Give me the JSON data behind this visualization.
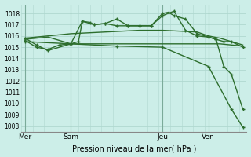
{
  "bg_color": "#cceee8",
  "grid_color": "#b0d8d0",
  "line_color": "#2d6e2d",
  "ylabel_ticks": [
    1008,
    1009,
    1010,
    1011,
    1012,
    1013,
    1014,
    1015,
    1016,
    1017,
    1018
  ],
  "ylim": [
    1007.5,
    1018.8
  ],
  "xlabel": "Pression niveau de la mer( hPa )",
  "xtick_labels": [
    "Mer",
    "Sam",
    "Jeu",
    "Ven"
  ],
  "xtick_positions": [
    0,
    24,
    72,
    96
  ],
  "xlim": [
    -2,
    116
  ],
  "vlines": [
    0,
    24,
    72,
    96
  ],
  "series": [
    {
      "x": [
        0,
        6,
        12,
        18,
        24,
        30,
        36,
        42,
        48,
        54,
        60,
        66,
        72,
        78,
        84,
        90,
        96,
        102,
        108,
        114
      ],
      "y": [
        1015.8,
        1015.9,
        1016.0,
        1016.1,
        1016.2,
        1016.25,
        1016.3,
        1016.35,
        1016.4,
        1016.45,
        1016.5,
        1016.5,
        1016.5,
        1016.45,
        1016.4,
        1016.35,
        1016.0,
        1015.8,
        1015.5,
        1015.2
      ],
      "marker": null,
      "lw": 1.0
    },
    {
      "x": [
        0,
        6,
        12,
        18,
        24,
        30,
        36,
        42,
        48,
        54,
        60,
        66,
        72,
        78,
        84,
        90,
        96,
        102,
        108,
        114
      ],
      "y": [
        1015.7,
        1015.8,
        1015.9,
        1015.6,
        1015.3,
        1015.3,
        1015.3,
        1015.3,
        1015.3,
        1015.3,
        1015.3,
        1015.3,
        1015.3,
        1015.3,
        1015.3,
        1015.3,
        1015.3,
        1015.3,
        1015.2,
        1015.1
      ],
      "marker": null,
      "lw": 1.0
    },
    {
      "x": [
        0,
        6,
        12,
        24,
        30,
        36,
        42,
        48,
        54,
        60,
        66,
        72,
        75,
        78,
        84,
        90,
        96,
        100,
        104,
        108,
        114
      ],
      "y": [
        1015.8,
        1015.2,
        1014.7,
        1015.3,
        1017.3,
        1017.0,
        1017.1,
        1017.5,
        1016.9,
        1016.9,
        1016.9,
        1018.0,
        1018.1,
        1017.8,
        1017.5,
        1016.2,
        1015.9,
        1015.7,
        1015.5,
        1015.5,
        1015.0
      ],
      "marker": "+",
      "lw": 1.0
    },
    {
      "x": [
        0,
        6,
        12,
        18,
        24,
        28,
        30,
        34,
        36,
        42,
        48,
        54,
        60,
        66,
        72,
        78,
        84,
        90,
        96,
        100,
        104,
        108,
        114
      ],
      "y": [
        1015.6,
        1015.0,
        1014.8,
        1015.2,
        1015.3,
        1015.5,
        1017.3,
        1017.2,
        1017.0,
        1017.1,
        1016.9,
        1016.9,
        1016.9,
        1016.9,
        1017.8,
        1018.2,
        1016.5,
        1016.0,
        1015.9,
        1015.7,
        1013.3,
        1012.6,
        1009.5
      ],
      "marker": "+",
      "lw": 1.0
    },
    {
      "x": [
        0,
        24,
        48,
        72,
        96,
        108,
        114
      ],
      "y": [
        1015.5,
        1015.3,
        1015.1,
        1015.0,
        1013.3,
        1009.5,
        1007.9
      ],
      "marker": "+",
      "lw": 1.0
    }
  ]
}
